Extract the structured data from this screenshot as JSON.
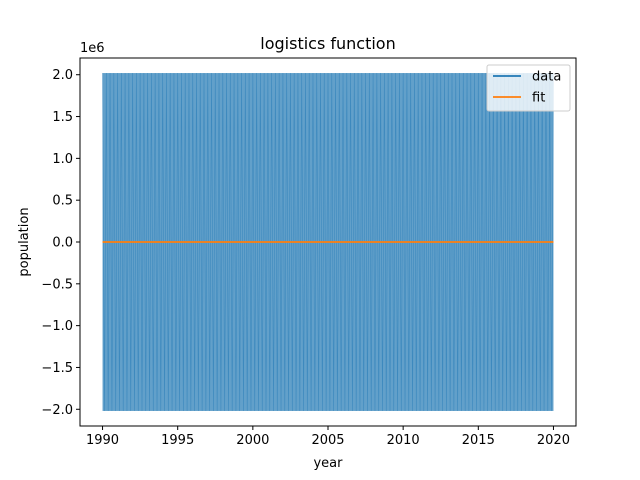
{
  "chart_data": {
    "type": "line",
    "title": "logistics function",
    "xlabel": "year",
    "ylabel": "population",
    "y_offset_label": "1e6",
    "xlim": [
      1988.5,
      2021.5
    ],
    "ylim": [
      -2.2,
      2.2
    ],
    "x_ticks": [
      1990,
      1995,
      2000,
      2005,
      2010,
      2015,
      2020
    ],
    "x_tick_labels": [
      "1990",
      "1995",
      "2000",
      "2005",
      "2010",
      "2015",
      "2020"
    ],
    "y_ticks": [
      -2.0,
      -1.5,
      -1.0,
      -0.5,
      0.0,
      0.5,
      1.0,
      1.5,
      2.0
    ],
    "y_tick_labels": [
      "−2.0",
      "−1.5",
      "−1.0",
      "−0.5",
      "0.0",
      "0.5",
      "1.0",
      "1.5",
      "2.0"
    ],
    "grid": false,
    "legend_position": "top-right",
    "series": [
      {
        "name": "data",
        "color": "#1f77b4",
        "x": [
          1990,
          1991,
          1992,
          1993,
          1994,
          1995,
          1996,
          1997,
          1998,
          1999,
          2000,
          2001,
          2002,
          2003,
          2004,
          2005,
          2006,
          2007,
          2008,
          2009,
          2010,
          2011,
          2012,
          2013,
          2014,
          2015,
          2016,
          2017,
          2018,
          2019,
          2020
        ],
        "y_upper": 2.02,
        "y_lower": -2.02
      },
      {
        "name": "fit",
        "color": "#ff7f0e",
        "x": [
          1990,
          1995,
          2000,
          2005,
          2010,
          2015,
          2020
        ],
        "y": [
          0,
          0,
          0,
          0,
          0,
          0,
          0
        ]
      }
    ]
  }
}
